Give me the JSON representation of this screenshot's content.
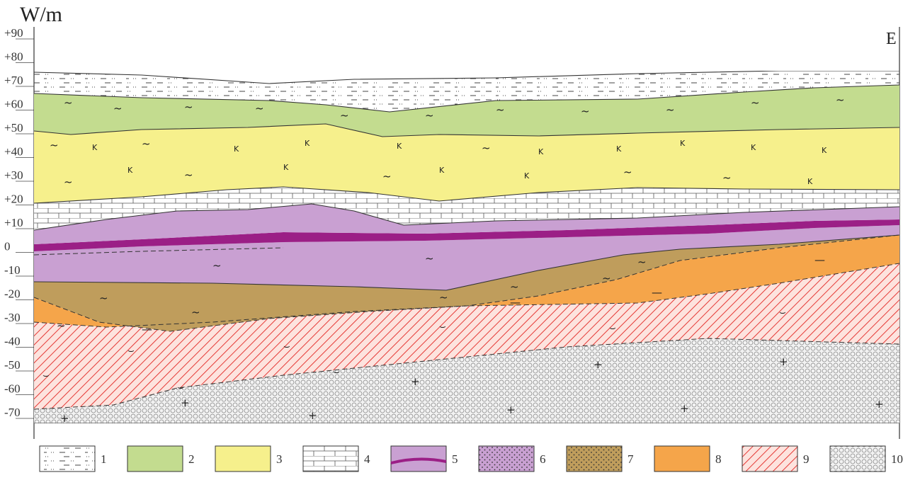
{
  "figure": {
    "y_axis_title": "W/m",
    "direction_label": "E",
    "y_ticks": [
      "+90",
      "+80",
      "+70",
      "+60",
      "+50",
      "+40",
      "+30",
      "+20",
      "+10",
      "0",
      "-10",
      "-20",
      "-30",
      "-40",
      "-50",
      "-60",
      "-70"
    ]
  },
  "legend": {
    "items": [
      {
        "number": "1",
        "pattern": "silt-dashes",
        "color": "#ffffff"
      },
      {
        "number": "2",
        "pattern": "clay-tilde",
        "color": "#c3dc8f"
      },
      {
        "number": "3",
        "pattern": "clay-tilde-k",
        "color": "#f6f08c"
      },
      {
        "number": "4",
        "pattern": "limestone-brick",
        "color": "#ffffff"
      },
      {
        "number": "5",
        "pattern": "clay-with-band",
        "color": "#c9a0d2"
      },
      {
        "number": "6",
        "pattern": "sand-dots",
        "color": "#c9a0d2"
      },
      {
        "number": "7",
        "pattern": "sand-dots",
        "color": "#bf9d5c"
      },
      {
        "number": "8",
        "pattern": "clay-tilde-dash",
        "color": "#f5a54a"
      },
      {
        "number": "9",
        "pattern": "hatched",
        "color": "#fbd2cc"
      },
      {
        "number": "10",
        "pattern": "circles",
        "color": "#e8e8e8"
      }
    ]
  },
  "colors": {
    "green": "#c3dc8f",
    "yellow": "#f6f08c",
    "purple": "#c9a0d2",
    "dark_purple": "#9b1f86",
    "khaki": "#bf9d5c",
    "orange": "#f5a54a",
    "pink": "#fbd2cc",
    "hatch": "#e53935",
    "grey": "#e8e8e8"
  }
}
